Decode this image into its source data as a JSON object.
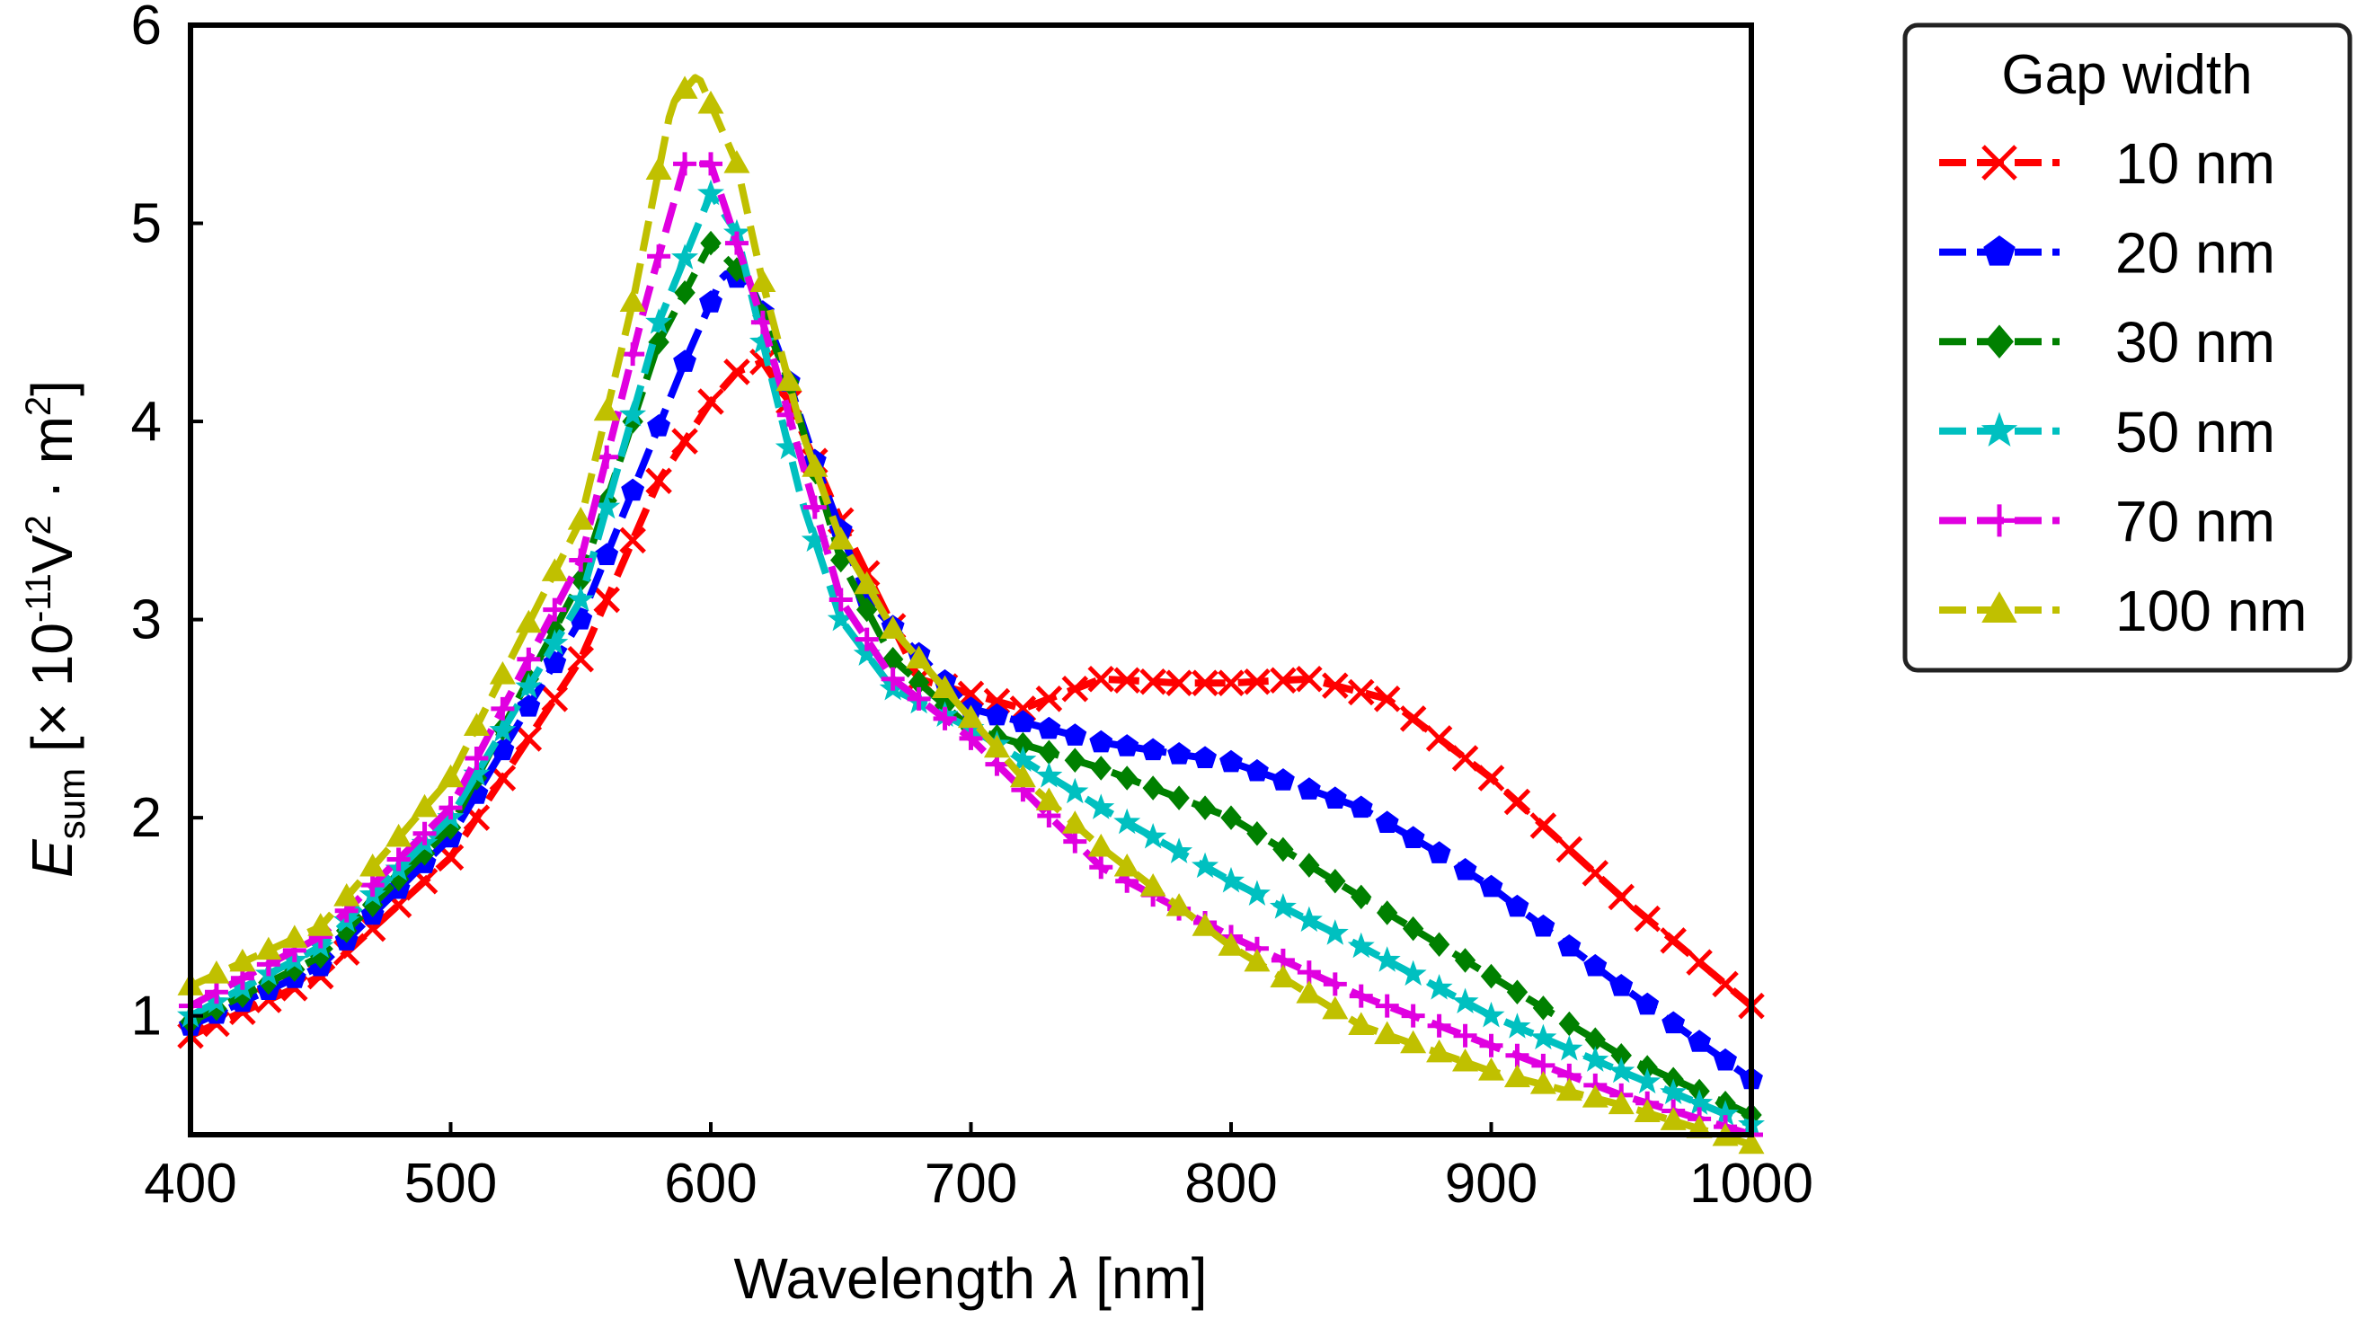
{
  "chart_data": {
    "type": "line",
    "title": "",
    "xlabel": "Wavelength λ [nm]",
    "xlabel_parts": {
      "text": "Wavelength ",
      "symbol": "λ",
      "unit": " [nm]"
    },
    "ylabel_parts": {
      "symbol": "E",
      "subscript": "sum",
      "bracket_open": " [",
      "times": "×",
      "base": " 10",
      "exponent": "-11",
      "v": "V",
      "v_exp": "2",
      "dot": " · m",
      "m_exp": "2",
      "bracket_close": "]"
    },
    "xlim": [
      400,
      1000
    ],
    "ylim": [
      0.4,
      6
    ],
    "xticks": [
      "400",
      "500",
      "600",
      "700",
      "800",
      "900",
      "1000"
    ],
    "yticks": [
      "1",
      "2",
      "3",
      "4",
      "5",
      "6"
    ],
    "grid": false,
    "legend": {
      "title": "Gap width",
      "position": "outside-right"
    },
    "series": [
      {
        "name": "10 nm",
        "color": "#ff0000",
        "marker": "x",
        "x": [
          400,
          450,
          500,
          550,
          580,
          600,
          610,
          620,
          630,
          650,
          680,
          720,
          750,
          780,
          800,
          830,
          860,
          880,
          900,
          950,
          1000
        ],
        "y": [
          0.9,
          1.2,
          1.8,
          2.8,
          3.7,
          4.1,
          4.25,
          4.3,
          4.1,
          3.5,
          2.7,
          2.55,
          2.7,
          2.68,
          2.68,
          2.7,
          2.6,
          2.4,
          2.2,
          1.6,
          1.05
        ]
      },
      {
        "name": "20 nm",
        "color": "#0000ff",
        "marker": "pentagon",
        "x": [
          400,
          450,
          500,
          550,
          590,
          605,
          615,
          625,
          640,
          660,
          700,
          750,
          800,
          850,
          880,
          900,
          950,
          1000
        ],
        "y": [
          0.95,
          1.25,
          1.9,
          3.0,
          4.3,
          4.75,
          4.7,
          4.4,
          3.8,
          3.1,
          2.55,
          2.38,
          2.28,
          2.05,
          1.82,
          1.65,
          1.15,
          0.68
        ]
      },
      {
        "name": "30 nm",
        "color": "#008000",
        "marker": "diamond",
        "x": [
          400,
          450,
          500,
          550,
          580,
          600,
          615,
          630,
          650,
          670,
          700,
          750,
          800,
          850,
          900,
          950,
          1000
        ],
        "y": [
          0.97,
          1.3,
          1.95,
          3.2,
          4.4,
          4.9,
          4.7,
          4.2,
          3.3,
          2.8,
          2.45,
          2.25,
          2.0,
          1.6,
          1.2,
          0.8,
          0.5
        ]
      },
      {
        "name": "50 nm",
        "color": "#00c0c0",
        "marker": "star",
        "x": [
          400,
          450,
          500,
          550,
          580,
          600,
          610,
          620,
          635,
          650,
          670,
          700,
          750,
          800,
          850,
          900,
          950,
          1000
        ],
        "y": [
          1.0,
          1.35,
          2.0,
          3.1,
          4.5,
          5.15,
          4.95,
          4.4,
          3.6,
          3.0,
          2.65,
          2.45,
          2.05,
          1.68,
          1.35,
          1.0,
          0.72,
          0.45
        ]
      },
      {
        "name": "70 nm",
        "color": "#e000e0",
        "marker": "plus",
        "x": [
          400,
          450,
          500,
          550,
          575,
          590,
          600,
          610,
          620,
          635,
          650,
          670,
          700,
          750,
          800,
          850,
          900,
          950,
          1000
        ],
        "y": [
          1.05,
          1.4,
          2.05,
          3.3,
          4.6,
          5.3,
          5.3,
          4.9,
          4.5,
          3.8,
          3.1,
          2.7,
          2.4,
          1.75,
          1.4,
          1.1,
          0.85,
          0.6,
          0.4
        ]
      },
      {
        "name": "100 nm",
        "color": "#c0c000",
        "marker": "triangle",
        "x": [
          400,
          450,
          500,
          550,
          570,
          585,
          595,
          610,
          620,
          635,
          650,
          670,
          700,
          720,
          750,
          800,
          850,
          900,
          950,
          1000
        ],
        "y": [
          1.15,
          1.45,
          2.2,
          3.5,
          4.6,
          5.6,
          5.75,
          5.3,
          4.7,
          3.95,
          3.4,
          2.95,
          2.5,
          2.2,
          1.85,
          1.35,
          0.95,
          0.72,
          0.55,
          0.35
        ]
      }
    ]
  }
}
